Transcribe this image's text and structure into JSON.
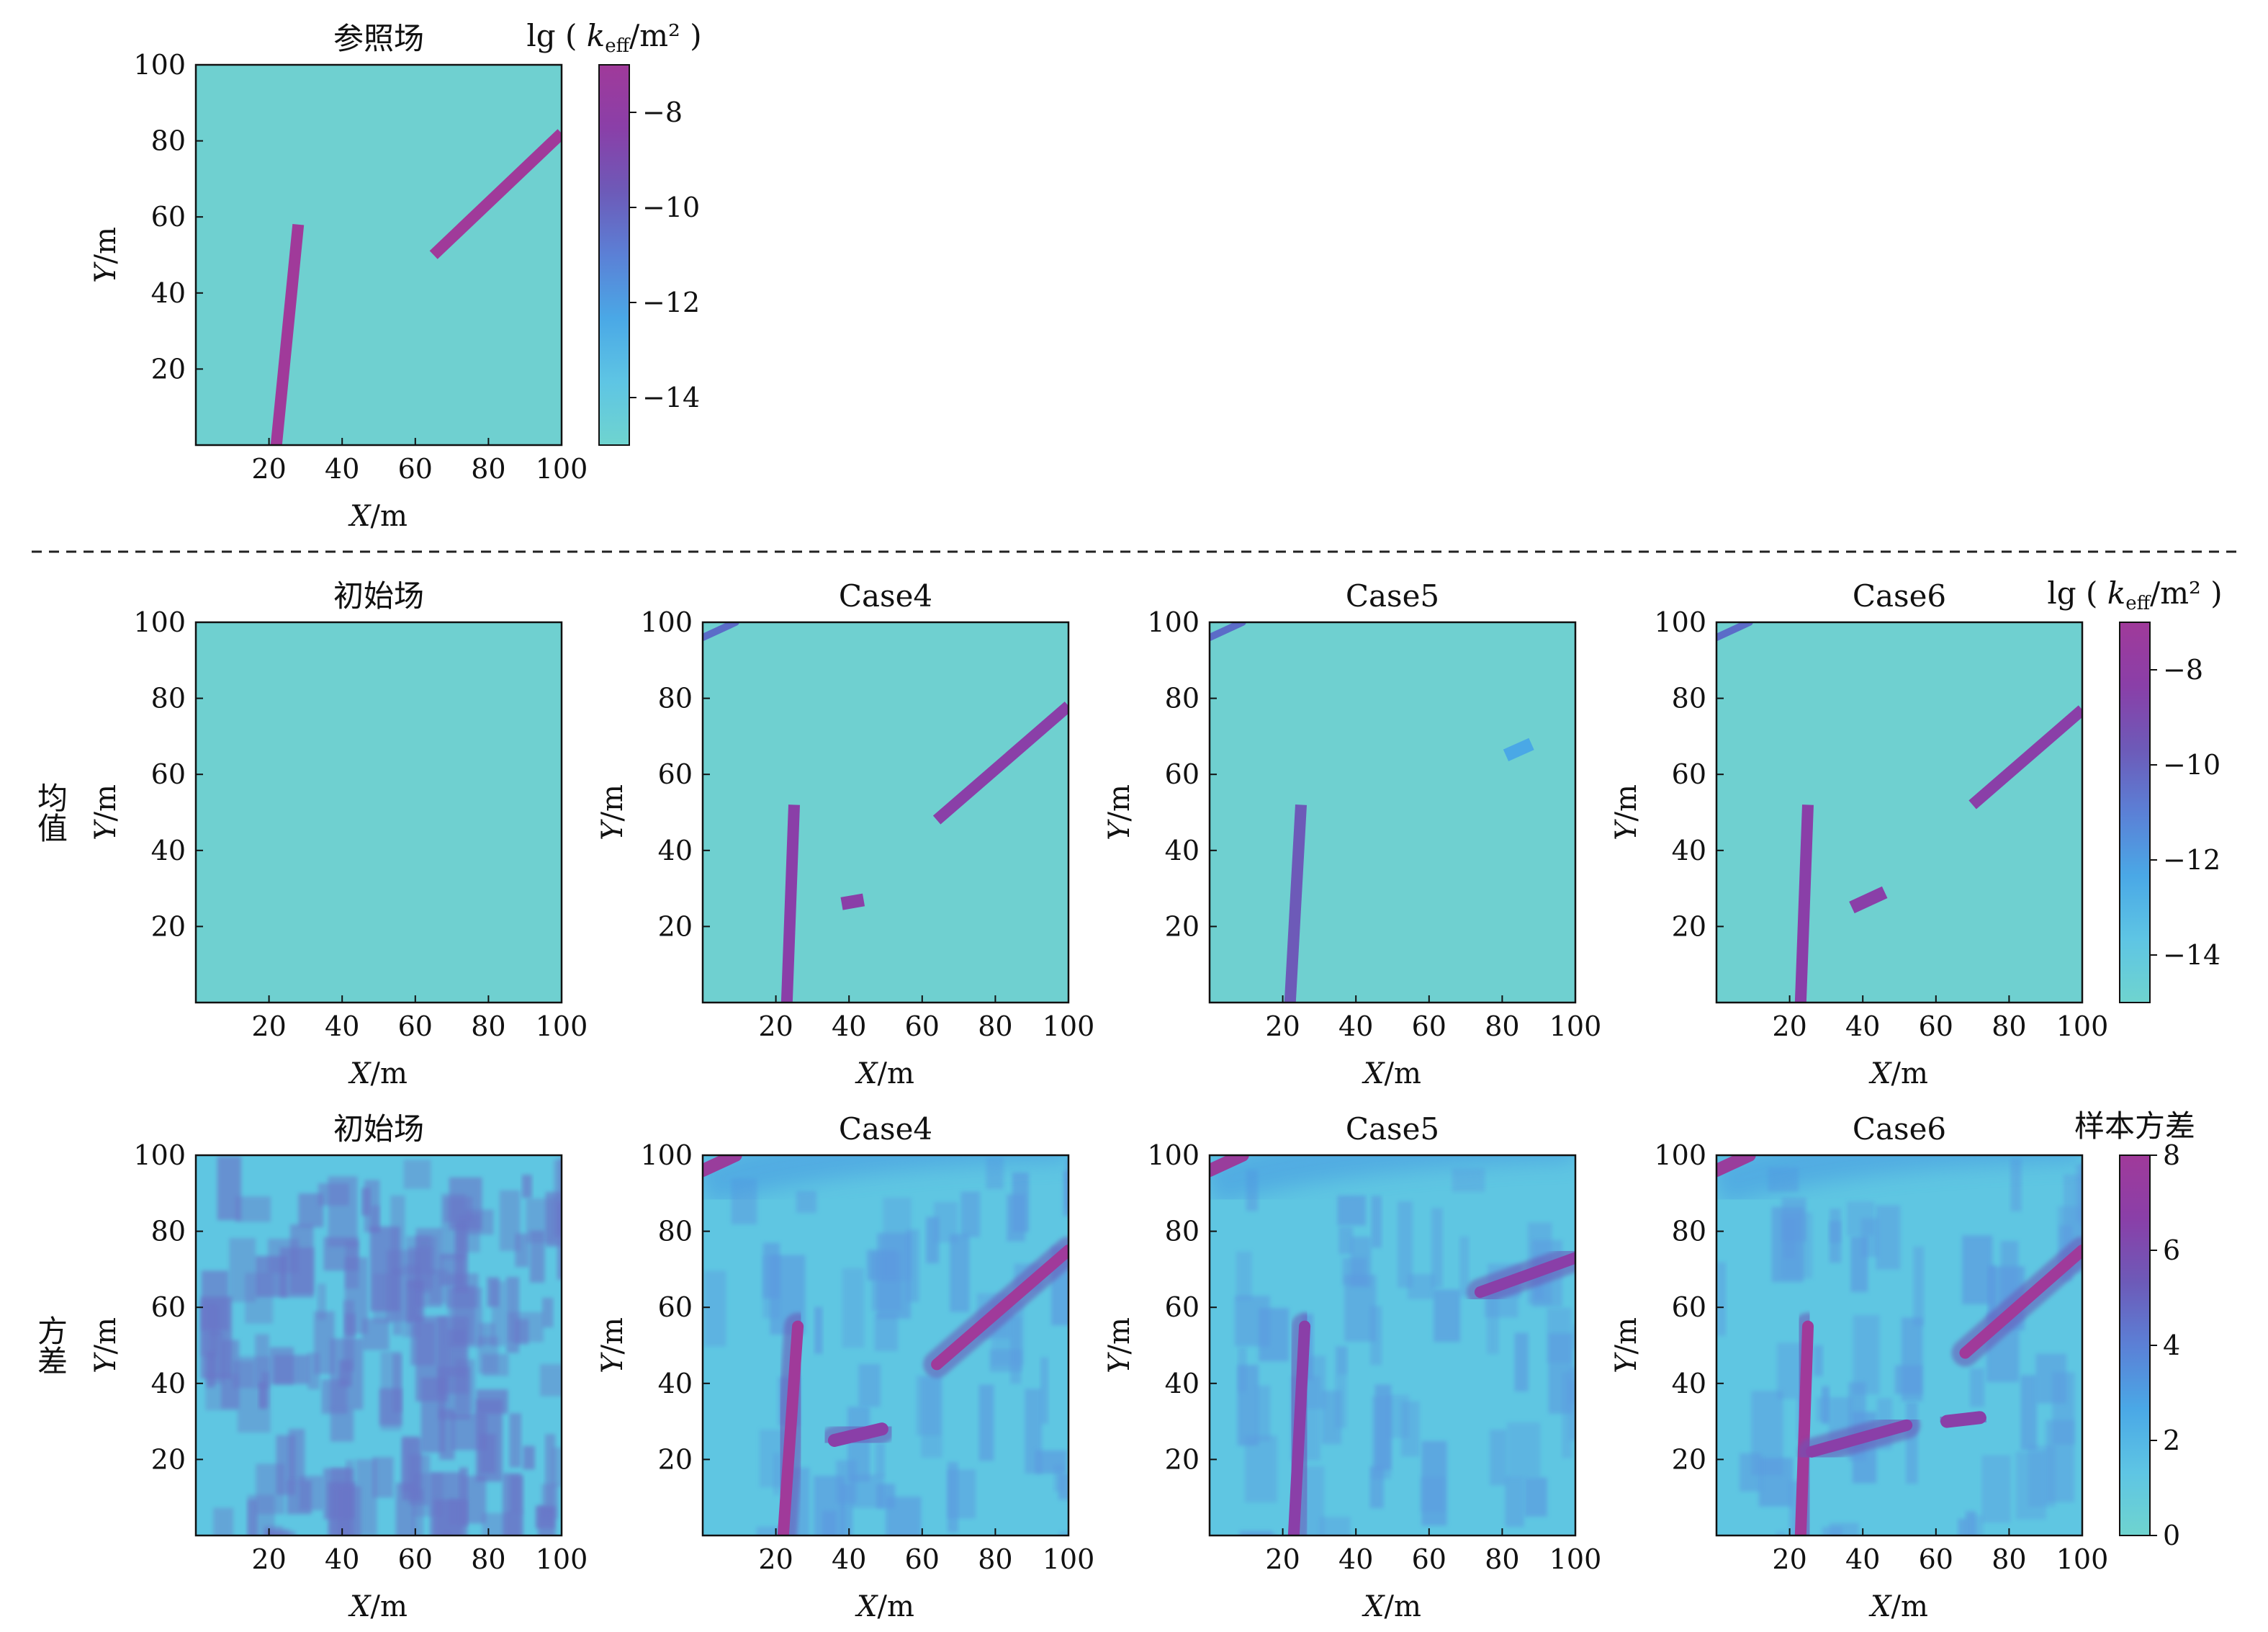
{
  "colors": {
    "field_background": "#6fd0d0",
    "fracture": "#993d9c",
    "colormap": [
      "#6fd4cf",
      "#5ec5e4",
      "#4aa8e6",
      "#5b80d6",
      "#6d5ab8",
      "#8a3fa8",
      "#a03a9a"
    ]
  },
  "chart_data": [
    {
      "type": "heatmap",
      "panel": "reference",
      "title": "参照场",
      "xlabel": "X/m",
      "ylabel": "Y/m",
      "xticks": [
        "20",
        "40",
        "60",
        "80",
        "100"
      ],
      "yticks": [
        "20",
        "40",
        "60",
        "80",
        "100"
      ],
      "xlim": [
        0,
        100
      ],
      "ylim": [
        0,
        100
      ],
      "colorbar": {
        "label": "lg ( keff/m² )",
        "ticks": [
          "−8",
          "−10",
          "−12",
          "−14"
        ],
        "tick_values": [
          -8,
          -10,
          -12,
          -14
        ],
        "range": [
          -15,
          -7
        ]
      },
      "fractures": [
        {
          "points": [
            [
              22,
              0
            ],
            [
              28,
              58
            ]
          ],
          "value": -7.5
        },
        {
          "points": [
            [
              65,
              50
            ],
            [
              100,
              82
            ]
          ],
          "value": -7.5
        }
      ]
    },
    {
      "type": "heatmap",
      "row": "均值",
      "column": "初始场",
      "xlabel": "X/m",
      "ylabel": "Y/m",
      "xticks": [
        "20",
        "40",
        "60",
        "80",
        "100"
      ],
      "yticks": [
        "20",
        "40",
        "60",
        "80",
        "100"
      ],
      "xlim": [
        0,
        100
      ],
      "ylim": [
        0,
        100
      ],
      "fractures": []
    },
    {
      "type": "heatmap",
      "row": "均值",
      "column": "Case4",
      "xlabel": "X/m",
      "ylabel": "Y/m",
      "xticks": [
        "20",
        "40",
        "60",
        "80",
        "100"
      ],
      "yticks": [
        "20",
        "40",
        "60",
        "80",
        "100"
      ],
      "xlim": [
        0,
        100
      ],
      "ylim": [
        0,
        100
      ],
      "fractures": [
        {
          "points": [
            [
              23,
              0
            ],
            [
              25,
              52
            ]
          ],
          "value": -8
        },
        {
          "points": [
            [
              64,
              48
            ],
            [
              100,
              78
            ]
          ],
          "value": -8
        },
        {
          "points": [
            [
              38,
              26
            ],
            [
              44,
              27
            ]
          ],
          "value": -9
        }
      ]
    },
    {
      "type": "heatmap",
      "row": "均值",
      "column": "Case5",
      "xlabel": "X/m",
      "ylabel": "Y/m",
      "xticks": [
        "20",
        "40",
        "60",
        "80",
        "100"
      ],
      "yticks": [
        "20",
        "40",
        "60",
        "80",
        "100"
      ],
      "xlim": [
        0,
        100
      ],
      "ylim": [
        0,
        100
      ],
      "fractures": [
        {
          "points": [
            [
              22,
              0
            ],
            [
              25,
              52
            ]
          ],
          "value": -10
        },
        {
          "points": [
            [
              81,
              65
            ],
            [
              88,
              68
            ]
          ],
          "value": -12
        }
      ]
    },
    {
      "type": "heatmap",
      "row": "均值",
      "column": "Case6",
      "xlabel": "X/m",
      "ylabel": "Y/m",
      "xticks": [
        "20",
        "40",
        "60",
        "80",
        "100"
      ],
      "yticks": [
        "20",
        "40",
        "60",
        "80",
        "100"
      ],
      "xlim": [
        0,
        100
      ],
      "ylim": [
        0,
        100
      ],
      "colorbar": {
        "label": "lg ( keff/m² )",
        "ticks": [
          "−8",
          "−10",
          "−12",
          "−14"
        ],
        "tick_values": [
          -8,
          -10,
          -12,
          -14
        ],
        "range": [
          -15,
          -7
        ]
      },
      "fractures": [
        {
          "points": [
            [
              23,
              0
            ],
            [
              25,
              52
            ]
          ],
          "value": -8
        },
        {
          "points": [
            [
              70,
              52
            ],
            [
              100,
              77
            ]
          ],
          "value": -8
        },
        {
          "points": [
            [
              37,
              25
            ],
            [
              46,
              29
            ]
          ],
          "value": -9
        }
      ]
    },
    {
      "type": "heatmap",
      "row": "方差",
      "column": "初始场",
      "xlabel": "X/m",
      "ylabel": "Y/m",
      "xticks": [
        "20",
        "40",
        "60",
        "80",
        "100"
      ],
      "yticks": [
        "20",
        "40",
        "60",
        "80",
        "100"
      ],
      "xlim": [
        0,
        100
      ],
      "ylim": [
        0,
        100
      ],
      "fractures": []
    },
    {
      "type": "heatmap",
      "row": "方差",
      "column": "Case4",
      "xlabel": "X/m",
      "ylabel": "Y/m",
      "xticks": [
        "20",
        "40",
        "60",
        "80",
        "100"
      ],
      "yticks": [
        "20",
        "40",
        "60",
        "80",
        "100"
      ],
      "xlim": [
        0,
        100
      ],
      "ylim": [
        0,
        100
      ],
      "fractures": [
        {
          "points": [
            [
              22,
              0
            ],
            [
              26,
              55
            ]
          ],
          "value": 8
        },
        {
          "points": [
            [
              64,
              45
            ],
            [
              100,
              75
            ]
          ],
          "value": 8
        },
        {
          "points": [
            [
              36,
              25
            ],
            [
              49,
              28
            ]
          ],
          "value": 7
        }
      ]
    },
    {
      "type": "heatmap",
      "row": "方差",
      "column": "Case5",
      "xlabel": "X/m",
      "ylabel": "Y/m",
      "xticks": [
        "20",
        "40",
        "60",
        "80",
        "100"
      ],
      "yticks": [
        "20",
        "40",
        "60",
        "80",
        "100"
      ],
      "xlim": [
        0,
        100
      ],
      "ylim": [
        0,
        100
      ],
      "fractures": [
        {
          "points": [
            [
              23,
              0
            ],
            [
              26,
              55
            ]
          ],
          "value": 7
        },
        {
          "points": [
            [
              74,
              64
            ],
            [
              100,
              73
            ]
          ],
          "value": 7
        }
      ]
    },
    {
      "type": "heatmap",
      "row": "方差",
      "column": "Case6",
      "xlabel": "X/m",
      "ylabel": "Y/m",
      "xticks": [
        "20",
        "40",
        "60",
        "80",
        "100"
      ],
      "yticks": [
        "20",
        "40",
        "60",
        "80",
        "100"
      ],
      "xlim": [
        0,
        100
      ],
      "ylim": [
        0,
        100
      ],
      "colorbar": {
        "label": "样本方差",
        "ticks": [
          "8",
          "6",
          "4",
          "2",
          "0"
        ],
        "tick_values": [
          8,
          6,
          4,
          2,
          0
        ],
        "range": [
          0,
          8
        ]
      },
      "fractures": [
        {
          "points": [
            [
              23,
              0
            ],
            [
              25,
              55
            ]
          ],
          "value": 8
        },
        {
          "points": [
            [
              68,
              48
            ],
            [
              100,
              75
            ]
          ],
          "value": 8
        },
        {
          "points": [
            [
              26,
              22
            ],
            [
              52,
              29
            ]
          ],
          "value": 7
        },
        {
          "points": [
            [
              63,
              30
            ],
            [
              72,
              31
            ]
          ],
          "value": 7
        }
      ]
    }
  ],
  "row_labels": [
    "均值",
    "方差"
  ]
}
